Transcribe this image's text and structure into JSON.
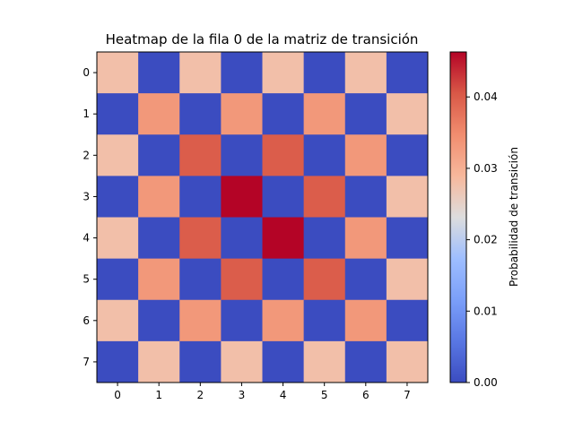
{
  "chart_data": {
    "type": "heatmap",
    "title": "Heatmap de la fila 0 de la matriz de transición",
    "x_ticks": [
      "0",
      "1",
      "2",
      "3",
      "4",
      "5",
      "6",
      "7"
    ],
    "y_ticks": [
      "0",
      "1",
      "2",
      "3",
      "4",
      "5",
      "6",
      "7"
    ],
    "values": [
      [
        0.0278,
        0,
        0.0278,
        0,
        0.0278,
        0,
        0.0278,
        0
      ],
      [
        0,
        0.0333,
        0,
        0.0333,
        0,
        0.0333,
        0,
        0.0278
      ],
      [
        0.0278,
        0,
        0.04,
        0,
        0.04,
        0,
        0.0333,
        0
      ],
      [
        0,
        0.0333,
        0,
        0.0463,
        0,
        0.04,
        0,
        0.0278
      ],
      [
        0.0278,
        0,
        0.04,
        0,
        0.0463,
        0,
        0.0333,
        0
      ],
      [
        0,
        0.0333,
        0,
        0.04,
        0,
        0.04,
        0,
        0.0278
      ],
      [
        0.0278,
        0,
        0.0333,
        0,
        0.0333,
        0,
        0.0333,
        0
      ],
      [
        0,
        0.0278,
        0,
        0.0278,
        0,
        0.0278,
        0,
        0.0278
      ]
    ],
    "colormap": "coolwarm",
    "vmin": 0,
    "vmax": 0.0463,
    "colorbar": {
      "label": "Probabilidad de transición",
      "ticks": [
        0.0,
        0.01,
        0.02,
        0.03,
        0.04
      ],
      "tick_labels": [
        "0.00",
        "0.01",
        "0.02",
        "0.03",
        "0.04"
      ],
      "placement": "right"
    }
  }
}
